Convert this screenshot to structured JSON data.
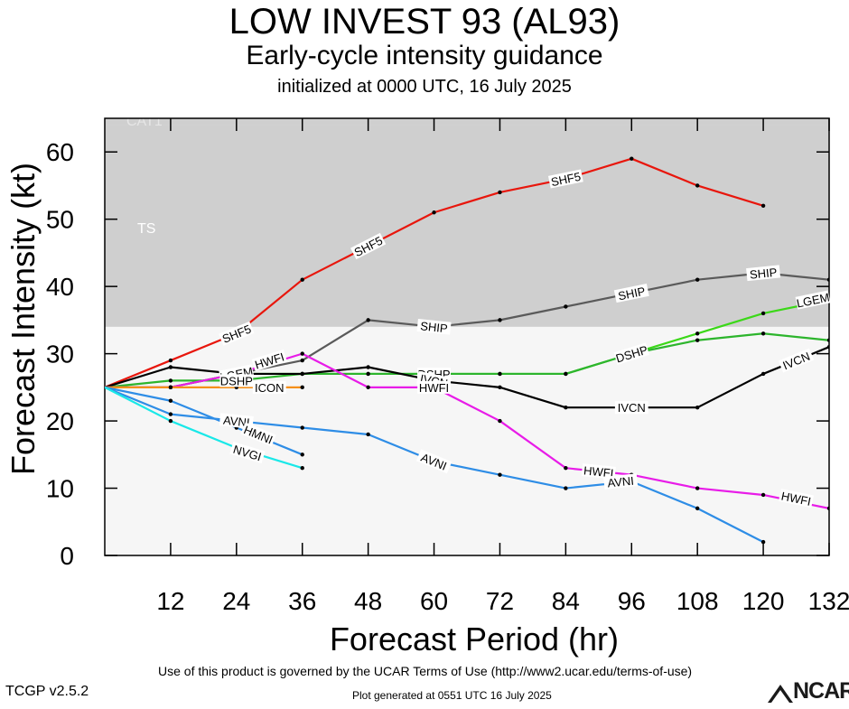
{
  "header": {
    "title": "LOW INVEST 93 (AL93)",
    "subtitle": "Early-cycle intensity guidance",
    "init": "initialized at 0000 UTC, 16 July 2025"
  },
  "footer": {
    "terms": "Use of this product is governed by the UCAR Terms of Use (http://www2.ucar.edu/terms-of-use)",
    "version": "TCGP v2.5.2",
    "generated": "Plot generated at 0551 UTC   16 July 2025",
    "logo": "NCAR"
  },
  "chart_data": {
    "type": "line",
    "xlabel": "Forecast Period (hr)",
    "ylabel": "Forecast Intensity (kt)",
    "xlim": [
      0,
      132
    ],
    "ylim": [
      0,
      65
    ],
    "x_ticks": [
      12,
      24,
      36,
      48,
      60,
      72,
      84,
      96,
      108,
      120,
      132
    ],
    "y_ticks": [
      0,
      10,
      20,
      30,
      40,
      50,
      60
    ],
    "bands": [
      {
        "label": "TS",
        "from": 34,
        "to": 64,
        "color": "#cfcfcf"
      },
      {
        "label": "CAT1",
        "from": 64,
        "to": 83,
        "color": "#cfcfcf"
      }
    ],
    "series": [
      {
        "name": "SHF5",
        "color": "#e8160c",
        "x": [
          0,
          12,
          24,
          36,
          48,
          60,
          72,
          84,
          96,
          108,
          120
        ],
        "y": [
          25,
          29,
          33,
          41,
          46,
          51,
          54,
          56,
          59,
          55,
          52
        ],
        "labels": [
          [
            24,
            33
          ],
          [
            48,
            46
          ],
          [
            84,
            56
          ]
        ]
      },
      {
        "name": "SHIP",
        "color": "#5a5a5a",
        "x": [
          0,
          12,
          24,
          36,
          48,
          60,
          72,
          84,
          96,
          108,
          120,
          132
        ],
        "y": [
          25,
          25,
          27,
          29,
          35,
          34,
          35,
          37,
          39,
          41,
          42,
          41
        ],
        "labels": [
          [
            24,
            27
          ],
          [
            60,
            34
          ],
          [
            96,
            39
          ],
          [
            120,
            42
          ]
        ]
      },
      {
        "name": "LGEM",
        "color": "#3bd818",
        "x": [
          0,
          12,
          24,
          36,
          48,
          60,
          72,
          84,
          96,
          108,
          120,
          132
        ],
        "y": [
          25,
          25,
          27,
          27,
          27,
          27,
          27,
          27,
          30,
          33,
          36,
          38
        ],
        "labels": [
          [
            24,
            27
          ],
          [
            60,
            27
          ],
          [
            96,
            30
          ],
          [
            132,
            38
          ]
        ]
      },
      {
        "name": "DSHP",
        "color": "#2db52d",
        "x": [
          0,
          12,
          24,
          36,
          48,
          60,
          72,
          84,
          96,
          108,
          120,
          132
        ],
        "y": [
          25,
          26,
          26,
          27,
          27,
          27,
          27,
          27,
          30,
          32,
          33,
          32
        ],
        "labels": [
          [
            24,
            26
          ],
          [
            60,
            27
          ],
          [
            96,
            30
          ]
        ]
      },
      {
        "name": "IVCN",
        "color": "#000000",
        "x": [
          0,
          12,
          24,
          36,
          48,
          60,
          72,
          84,
          96,
          108,
          120,
          132
        ],
        "y": [
          25,
          28,
          27,
          27,
          28,
          26,
          25,
          22,
          22,
          22,
          27,
          31
        ],
        "labels": [
          [
            60,
            26
          ],
          [
            96,
            22
          ],
          [
            126,
            29
          ]
        ]
      },
      {
        "name": "HWFI",
        "color": "#e81ce8",
        "x": [
          0,
          12,
          24,
          36,
          48,
          60,
          72,
          84,
          96,
          108,
          120,
          132
        ],
        "y": [
          25,
          25,
          27,
          30,
          25,
          25,
          20,
          13,
          12,
          10,
          9,
          7
        ],
        "labels": [
          [
            30,
            29
          ],
          [
            60,
            25
          ],
          [
            90,
            12.5
          ],
          [
            126,
            8.5
          ]
        ]
      },
      {
        "name": "ICON",
        "color": "#f5901a",
        "x": [
          0,
          12,
          24,
          36
        ],
        "y": [
          25,
          25,
          25,
          25
        ],
        "labels": [
          [
            30,
            25
          ]
        ]
      },
      {
        "name": "AVNI",
        "color": "#2e8de6",
        "x": [
          0,
          12,
          24,
          36,
          48,
          60,
          72,
          84,
          96,
          108,
          120
        ],
        "y": [
          25,
          21,
          20,
          19,
          18,
          14,
          12,
          10,
          11,
          7,
          2
        ],
        "labels": [
          [
            24,
            20
          ],
          [
            60,
            14
          ],
          [
            94,
            11
          ]
        ]
      },
      {
        "name": "HMNI",
        "color": "#2e8de6",
        "x": [
          0,
          12,
          24,
          36
        ],
        "y": [
          25,
          23,
          19,
          15
        ],
        "labels": [
          [
            28,
            18
          ]
        ]
      },
      {
        "name": "NVGI",
        "color": "#19e8e8",
        "x": [
          0,
          12,
          24,
          36
        ],
        "y": [
          25,
          20,
          16,
          13
        ],
        "labels": [
          [
            26,
            15.3
          ]
        ]
      }
    ]
  }
}
